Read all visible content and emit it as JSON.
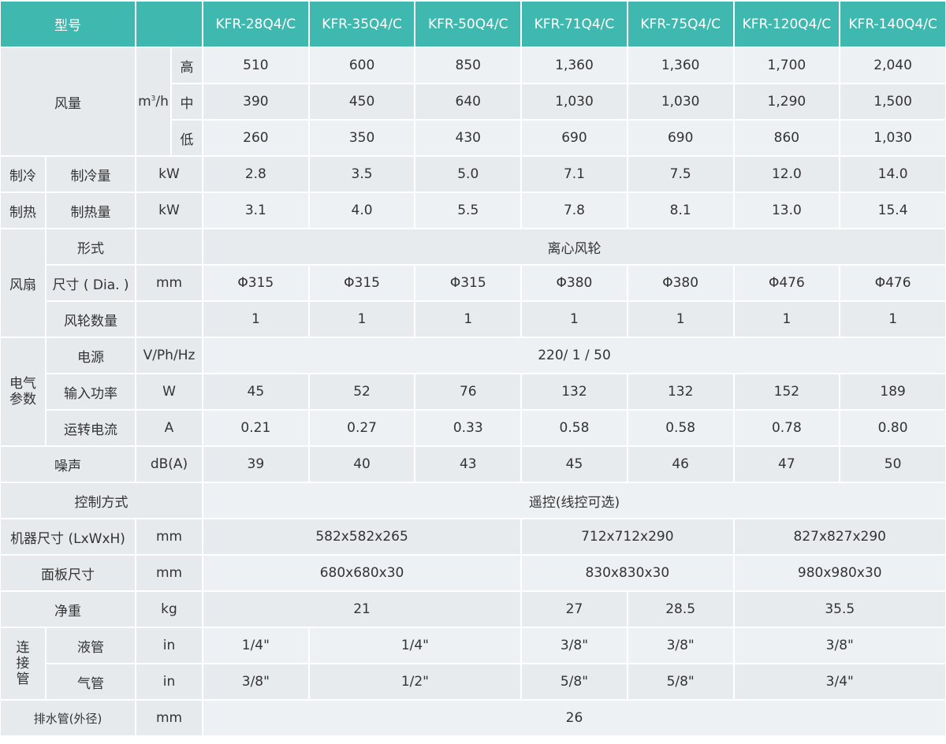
{
  "header": {
    "title": "型号",
    "models": [
      "KFR-28Q4/C",
      "KFR-35Q4/C",
      "KFR-50Q4/C",
      "KFR-71Q4/C",
      "KFR-75Q4/C",
      "KFR-120Q4/C",
      "KFR-140Q4/C"
    ]
  },
  "airflow": {
    "label": "风量",
    "unit": "m³/h",
    "levels": [
      {
        "level": "高",
        "values": [
          "510",
          "600",
          "850",
          "1,360",
          "1,360",
          "1,700",
          "2,040"
        ]
      },
      {
        "level": "中",
        "values": [
          "390",
          "450",
          "640",
          "1,030",
          "1,030",
          "1,290",
          "1,500"
        ]
      },
      {
        "level": "低",
        "values": [
          "260",
          "350",
          "430",
          "690",
          "690",
          "860",
          "1,030"
        ]
      }
    ]
  },
  "cooling": {
    "group": "制冷",
    "label": "制冷量",
    "unit": "kW",
    "values": [
      "2.8",
      "3.5",
      "5.0",
      "7.1",
      "7.5",
      "12.0",
      "14.0"
    ]
  },
  "heating": {
    "group": "制热",
    "label": "制热量",
    "unit": "kW",
    "values": [
      "3.1",
      "4.0",
      "5.5",
      "7.8",
      "8.1",
      "13.0",
      "15.4"
    ]
  },
  "fan": {
    "group": "风扇",
    "rows": [
      {
        "label": "形式",
        "unit": "",
        "cells": [
          {
            "value": "离心风轮",
            "span": 7
          }
        ]
      },
      {
        "label": "尺寸 ( Dia. )",
        "unit": "mm",
        "cells": [
          {
            "value": "Φ315",
            "span": 1
          },
          {
            "value": "Φ315",
            "span": 1
          },
          {
            "value": "Φ315",
            "span": 1
          },
          {
            "value": "Φ380",
            "span": 1
          },
          {
            "value": "Φ380",
            "span": 1
          },
          {
            "value": "Φ476",
            "span": 1
          },
          {
            "value": "Φ476",
            "span": 1
          }
        ]
      },
      {
        "label": "风轮数量",
        "unit": "",
        "cells": [
          {
            "value": "1",
            "span": 1
          },
          {
            "value": "1",
            "span": 1
          },
          {
            "value": "1",
            "span": 1
          },
          {
            "value": "1",
            "span": 1
          },
          {
            "value": "1",
            "span": 1
          },
          {
            "value": "1",
            "span": 1
          },
          {
            "value": "1",
            "span": 1
          }
        ]
      }
    ]
  },
  "electrical": {
    "group": "电气\n参数",
    "rows": [
      {
        "label": "电源",
        "unit": "V/Ph/Hz",
        "cells": [
          {
            "value": "220/ 1 / 50",
            "span": 7
          }
        ]
      },
      {
        "label": "输入功率",
        "unit": "W",
        "cells": [
          {
            "value": "45",
            "span": 1
          },
          {
            "value": "52",
            "span": 1
          },
          {
            "value": "76",
            "span": 1
          },
          {
            "value": "132",
            "span": 1
          },
          {
            "value": "132",
            "span": 1
          },
          {
            "value": "152",
            "span": 1
          },
          {
            "value": "189",
            "span": 1
          }
        ]
      },
      {
        "label": "运转电流",
        "unit": "A",
        "cells": [
          {
            "value": "0.21",
            "span": 1
          },
          {
            "value": "0.27",
            "span": 1
          },
          {
            "value": "0.33",
            "span": 1
          },
          {
            "value": "0.58",
            "span": 1
          },
          {
            "value": "0.58",
            "span": 1
          },
          {
            "value": "0.78",
            "span": 1
          },
          {
            "value": "0.80",
            "span": 1
          }
        ]
      }
    ]
  },
  "simple_rows": [
    {
      "label": "噪声",
      "unit": "dB(A)",
      "cells": [
        {
          "value": "39",
          "span": 1
        },
        {
          "value": "40",
          "span": 1
        },
        {
          "value": "43",
          "span": 1
        },
        {
          "value": "45",
          "span": 1
        },
        {
          "value": "46",
          "span": 1
        },
        {
          "value": "47",
          "span": 1
        },
        {
          "value": "50",
          "span": 1
        }
      ]
    },
    {
      "label": "控制方式",
      "unit": null,
      "cells": [
        {
          "value": "遥控(线控可选)",
          "span": 7
        }
      ]
    },
    {
      "label": "机器尺寸 (LxWxH)",
      "unit": "mm",
      "cells": [
        {
          "value": "582x582x265",
          "span": 3
        },
        {
          "value": "712x712x290",
          "span": 2
        },
        {
          "value": "827x827x290",
          "span": 2
        }
      ]
    },
    {
      "label": "面板尺寸",
      "unit": "mm",
      "cells": [
        {
          "value": "680x680x30",
          "span": 3
        },
        {
          "value": "830x830x30",
          "span": 2
        },
        {
          "value": "980x980x30",
          "span": 2
        }
      ]
    },
    {
      "label": "净重",
      "unit": "kg",
      "cells": [
        {
          "value": "21",
          "span": 3
        },
        {
          "value": "27",
          "span": 1
        },
        {
          "value": "28.5",
          "span": 1
        },
        {
          "value": "35.5",
          "span": 2
        }
      ]
    }
  ],
  "piping": {
    "group": "连\n接\n管",
    "rows": [
      {
        "label": "液管",
        "unit": "in",
        "cells": [
          {
            "value": "1/4\"",
            "span": 1
          },
          {
            "value": "1/4\"",
            "span": 2
          },
          {
            "value": "3/8\"",
            "span": 1
          },
          {
            "value": "3/8\"",
            "span": 1
          },
          {
            "value": "3/8\"",
            "span": 2
          }
        ]
      },
      {
        "label": "气管",
        "unit": "in",
        "cells": [
          {
            "value": "3/8\"",
            "span": 1
          },
          {
            "value": "1/2\"",
            "span": 2
          },
          {
            "value": "5/8\"",
            "span": 1
          },
          {
            "value": "5/8\"",
            "span": 1
          },
          {
            "value": "3/4\"",
            "span": 2
          }
        ]
      }
    ]
  },
  "drain": {
    "label": "排水管(外径)",
    "unit": "mm",
    "cells": [
      {
        "value": "26",
        "span": 7
      }
    ]
  }
}
